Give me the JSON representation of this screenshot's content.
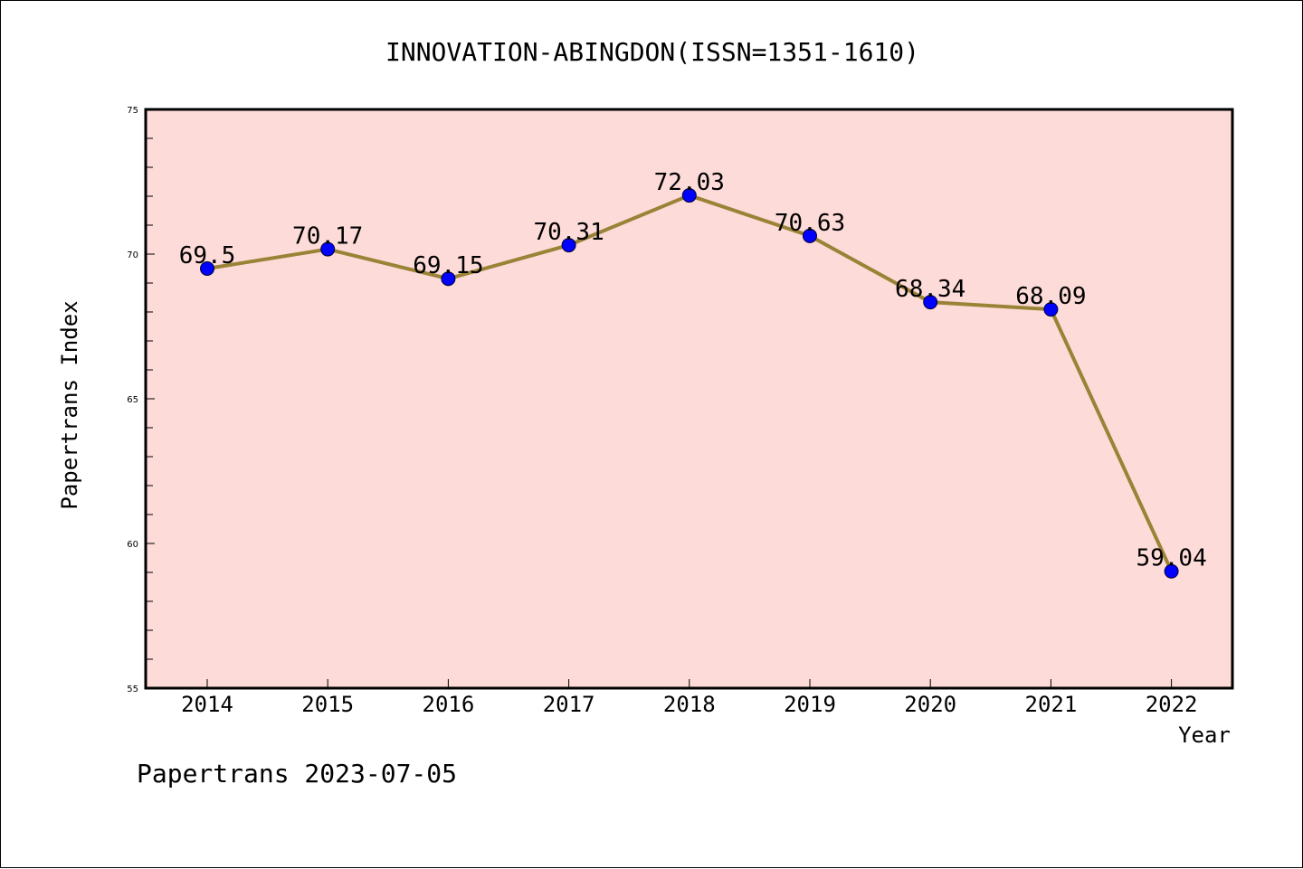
{
  "title": "INNOVATION-ABINGDON(ISSN=1351-1610)",
  "footer": "Papertrans 2023-07-05",
  "colors": {
    "plot_bg": "#fddbd8",
    "line": "#9a8236",
    "marker": "#0000ff"
  },
  "chart_data": {
    "type": "line",
    "title": "INNOVATION-ABINGDON(ISSN=1351-1610)",
    "xlabel": "Year",
    "ylabel": "Papertrans Index",
    "ylim": [
      55,
      75
    ],
    "yticks": [
      "55",
      "60",
      "65",
      "70",
      "75"
    ],
    "categories": [
      "2014",
      "2015",
      "2016",
      "2017",
      "2018",
      "2019",
      "2020",
      "2021",
      "2022"
    ],
    "values": [
      69.5,
      70.17,
      69.15,
      70.31,
      72.03,
      70.63,
      68.34,
      68.09,
      59.04
    ],
    "data_labels": [
      "69.5",
      "70.17",
      "69.15",
      "70.31",
      "72.03",
      "70.63",
      "68.34",
      "68.09",
      "59.04"
    ],
    "grid": false
  }
}
